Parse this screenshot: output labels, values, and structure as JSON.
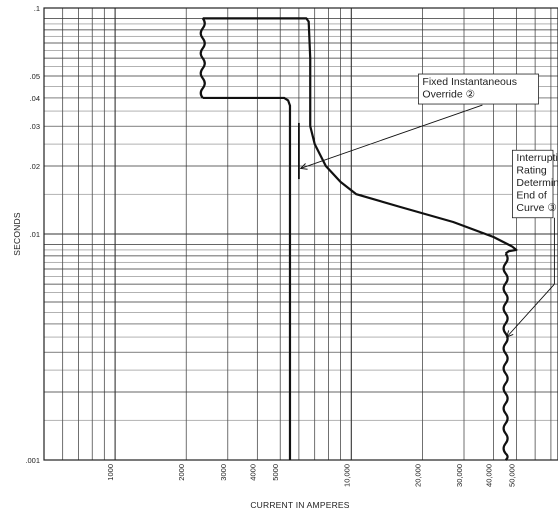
{
  "chart_data": {
    "type": "line",
    "title": "",
    "xlabel": "CURRENT IN AMPERES",
    "ylabel": "SECONDS",
    "xscale": "log",
    "yscale": "log",
    "xlim": [
      500,
      75000
    ],
    "ylim": [
      0.001,
      0.1
    ],
    "grid": true,
    "x_ticks": [
      {
        "value": 1000,
        "label": "1000"
      },
      {
        "value": 2000,
        "label": "2000"
      },
      {
        "value": 3000,
        "label": "3000"
      },
      {
        "value": 4000,
        "label": "4000"
      },
      {
        "value": 5000,
        "label": "5000"
      },
      {
        "value": 10000,
        "label": "10,000"
      },
      {
        "value": 20000,
        "label": "20,000"
      },
      {
        "value": 30000,
        "label": "30,000"
      },
      {
        "value": 40000,
        "label": "40,000"
      },
      {
        "value": 50000,
        "label": "50,000"
      }
    ],
    "y_ticks": [
      {
        "value": 0.1,
        "label": ".1"
      },
      {
        "value": 0.05,
        "label": ".05"
      },
      {
        "value": 0.04,
        "label": ".04"
      },
      {
        "value": 0.03,
        "label": ".03"
      },
      {
        "value": 0.02,
        "label": ".02"
      },
      {
        "value": 0.01,
        "label": ".01"
      },
      {
        "value": 0.001,
        "label": ".001"
      }
    ],
    "series": [
      {
        "points": [
          [
            2350,
            0.09
          ],
          [
            6450,
            0.09
          ],
          [
            6600,
            0.087
          ],
          [
            6700,
            0.06
          ],
          [
            6700,
            0.03
          ],
          [
            7000,
            0.025
          ],
          [
            7800,
            0.02
          ],
          [
            9000,
            0.017
          ],
          [
            10500,
            0.015
          ],
          [
            16000,
            0.0132
          ],
          [
            27000,
            0.0113
          ],
          [
            40000,
            0.0097
          ],
          [
            48000,
            0.0088
          ],
          [
            50000,
            0.0085
          ],
          [
            46500,
            0.0084
          ],
          [
            45000,
            0.0082
          ]
        ]
      },
      {
        "points": [
          [
            2350,
            0.04
          ],
          [
            5200,
            0.04
          ],
          [
            5400,
            0.039
          ],
          [
            5500,
            0.037
          ],
          [
            5500,
            0.001
          ]
        ]
      },
      {
        "points": [
          [
            2350,
            0.09
          ],
          [
            2350,
            0.04
          ]
        ],
        "style": "wavy"
      },
      {
        "points": [
          [
            45000,
            0.0082
          ],
          [
            45000,
            0.001
          ]
        ],
        "style": "wavy"
      },
      {
        "points": [
          [
            6000,
            0.031
          ],
          [
            6000,
            0.0175
          ]
        ],
        "style": "marker"
      }
    ],
    "annotations": [
      {
        "lines": [
          "Fixed Instantaneous",
          "Override ②"
        ],
        "anchor": [
          20000,
          0.05
        ],
        "arrow_to": [
          6100,
          0.0195
        ]
      },
      {
        "lines": [
          "Interrupting",
          "Rating",
          "Determines",
          "End of",
          "Curve ③"
        ],
        "anchor": [
          50000,
          0.023
        ],
        "arrow_to": [
          45500,
          0.0035
        ]
      }
    ]
  }
}
